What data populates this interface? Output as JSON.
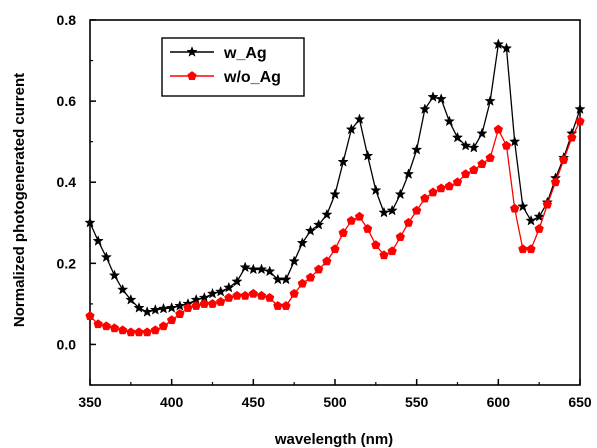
{
  "chart_data": {
    "type": "line",
    "title": "",
    "xlabel": "wavelength (nm)",
    "ylabel": "Normalized photogenerated current",
    "xlim": [
      350,
      650
    ],
    "ylim": [
      -0.1,
      0.8
    ],
    "xticks": [
      "350",
      "400",
      "450",
      "500",
      "550",
      "600",
      "650"
    ],
    "yticks": [
      "0.0",
      "0.2",
      "0.4",
      "0.6",
      "0.8"
    ],
    "grid": false,
    "legend_position": "top-left",
    "series": [
      {
        "name": "w_Ag",
        "color": "#000000",
        "marker": "star",
        "x": [
          350,
          355,
          360,
          365,
          370,
          375,
          380,
          385,
          390,
          395,
          400,
          405,
          410,
          415,
          420,
          425,
          430,
          435,
          440,
          445,
          450,
          455,
          460,
          465,
          470,
          475,
          480,
          485,
          490,
          495,
          500,
          505,
          510,
          515,
          520,
          525,
          530,
          535,
          540,
          545,
          550,
          555,
          560,
          565,
          570,
          575,
          580,
          585,
          590,
          595,
          600,
          605,
          610,
          615,
          620,
          625,
          630,
          635,
          640,
          645,
          650
        ],
        "values": [
          0.3,
          0.255,
          0.215,
          0.17,
          0.135,
          0.11,
          0.09,
          0.08,
          0.085,
          0.088,
          0.09,
          0.095,
          0.1,
          0.11,
          0.115,
          0.125,
          0.13,
          0.14,
          0.155,
          0.19,
          0.185,
          0.185,
          0.18,
          0.16,
          0.16,
          0.205,
          0.25,
          0.28,
          0.295,
          0.32,
          0.37,
          0.45,
          0.53,
          0.555,
          0.465,
          0.38,
          0.325,
          0.33,
          0.37,
          0.42,
          0.48,
          0.58,
          0.61,
          0.605,
          0.55,
          0.51,
          0.49,
          0.485,
          0.52,
          0.6,
          0.74,
          0.73,
          0.5,
          0.34,
          0.305,
          0.315,
          0.35,
          0.41,
          0.46,
          0.52,
          0.58
        ]
      },
      {
        "name": "w/o_Ag",
        "color": "#ff0000",
        "marker": "pentagon",
        "x": [
          350,
          355,
          360,
          365,
          370,
          375,
          380,
          385,
          390,
          395,
          400,
          405,
          410,
          415,
          420,
          425,
          430,
          435,
          440,
          445,
          450,
          455,
          460,
          465,
          470,
          475,
          480,
          485,
          490,
          495,
          500,
          505,
          510,
          515,
          520,
          525,
          530,
          535,
          540,
          545,
          550,
          555,
          560,
          565,
          570,
          575,
          580,
          585,
          590,
          595,
          600,
          605,
          610,
          615,
          620,
          625,
          630,
          635,
          640,
          645,
          650
        ],
        "values": [
          0.07,
          0.05,
          0.045,
          0.04,
          0.035,
          0.03,
          0.03,
          0.03,
          0.035,
          0.045,
          0.06,
          0.075,
          0.09,
          0.095,
          0.1,
          0.1,
          0.105,
          0.115,
          0.12,
          0.12,
          0.125,
          0.12,
          0.115,
          0.095,
          0.095,
          0.125,
          0.15,
          0.165,
          0.185,
          0.205,
          0.235,
          0.275,
          0.305,
          0.315,
          0.285,
          0.245,
          0.22,
          0.23,
          0.265,
          0.3,
          0.33,
          0.36,
          0.375,
          0.385,
          0.39,
          0.4,
          0.42,
          0.43,
          0.445,
          0.46,
          0.53,
          0.49,
          0.335,
          0.235,
          0.235,
          0.285,
          0.345,
          0.4,
          0.455,
          0.51,
          0.55
        ]
      }
    ]
  }
}
